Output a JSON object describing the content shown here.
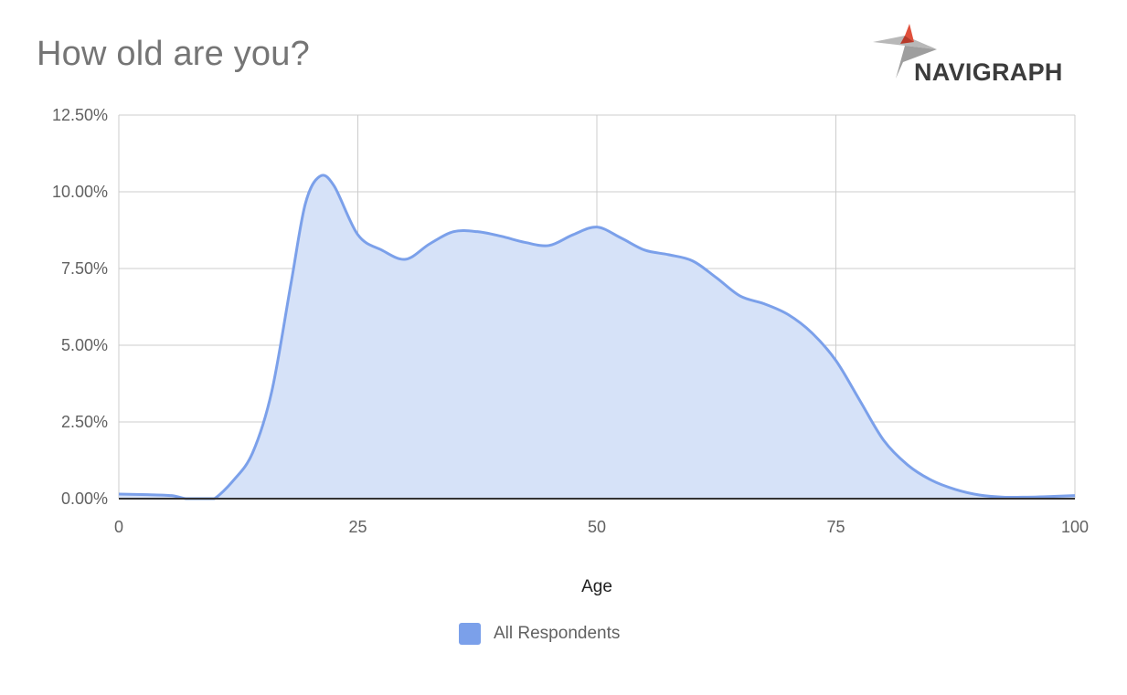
{
  "title": "How old are you?",
  "logo": {
    "text": "NAVIGRAPH",
    "accent": "#e0503c",
    "gray": "#b0b0b0"
  },
  "colors": {
    "series": "#7ba0ea",
    "fill": "#d6e2f8",
    "grid": "#cccccc",
    "axis": "#333333"
  },
  "chart_data": {
    "type": "area",
    "title": "How old are you?",
    "xlabel": "Age",
    "ylabel": "",
    "xlim": [
      0,
      100
    ],
    "ylim": [
      0,
      12.5
    ],
    "x_ticks": [
      "0",
      "25",
      "50",
      "75",
      "100"
    ],
    "y_ticks": [
      "0.00%",
      "2.50%",
      "5.00%",
      "7.50%",
      "10.00%",
      "12.50%"
    ],
    "grid": true,
    "legend_position": "bottom",
    "series": [
      {
        "name": "All Respondents",
        "x": [
          0,
          3,
          5.5,
          7,
          8,
          9,
          10,
          12,
          14,
          16,
          18,
          19.5,
          21,
          22.5,
          25,
          27.5,
          30,
          32.5,
          35,
          37.5,
          40,
          42.5,
          45,
          47.5,
          50,
          52.5,
          55,
          57.5,
          60,
          62.5,
          65,
          67.5,
          70,
          72.5,
          75,
          77.5,
          80,
          82.5,
          85,
          87.5,
          90,
          92.5,
          95,
          97.5,
          100
        ],
        "values": [
          0.15,
          0.13,
          0.1,
          0.0,
          0.0,
          0.0,
          0.0,
          0.6,
          1.5,
          3.5,
          7.0,
          9.6,
          10.5,
          10.2,
          8.6,
          8.1,
          7.8,
          8.3,
          8.7,
          8.7,
          8.55,
          8.35,
          8.25,
          8.6,
          8.85,
          8.5,
          8.1,
          7.95,
          7.75,
          7.2,
          6.6,
          6.35,
          6.0,
          5.4,
          4.5,
          3.2,
          1.9,
          1.1,
          0.6,
          0.3,
          0.12,
          0.05,
          0.05,
          0.07,
          0.1
        ]
      }
    ]
  }
}
